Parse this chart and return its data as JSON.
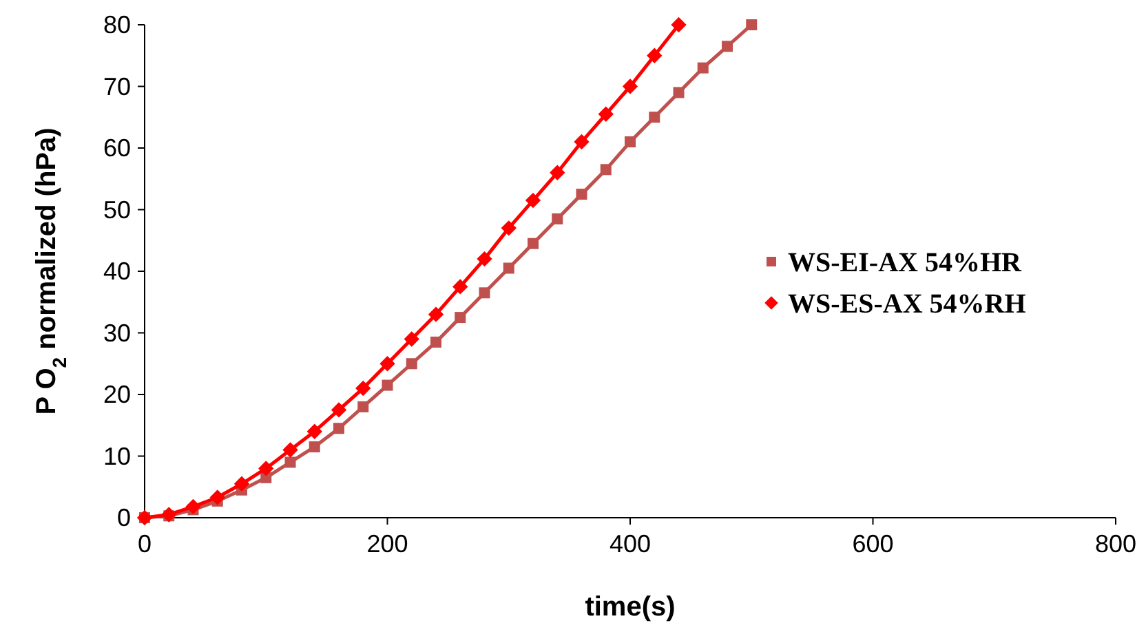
{
  "chart_data": {
    "type": "line",
    "xlabel": "time(s)",
    "ylabel": "P O$_{2}$ normalized (hPa)",
    "xlim": [
      0,
      800
    ],
    "xticks": [
      0,
      200,
      400,
      600,
      800
    ],
    "ylim": [
      0,
      80
    ],
    "yticks": [
      0,
      10,
      20,
      30,
      40,
      50,
      60,
      70,
      80
    ],
    "grid": false,
    "legend": "right",
    "series": [
      {
        "name": "WS-EI-AX 54%HR",
        "color": "#c0504d",
        "marker": "square",
        "x": [
          0,
          20,
          40,
          60,
          80,
          100,
          120,
          140,
          160,
          180,
          200,
          220,
          240,
          260,
          280,
          300,
          320,
          340,
          360,
          380,
          400,
          420,
          440,
          460,
          480,
          500
        ],
        "values": [
          0,
          0.3,
          1.3,
          2.7,
          4.5,
          6.5,
          9,
          11.5,
          14.5,
          18,
          21.5,
          25,
          28.5,
          32.5,
          36.5,
          40.5,
          44.5,
          48.5,
          52.5,
          56.5,
          61,
          65,
          69,
          73,
          76.5,
          80
        ]
      },
      {
        "name": "WS-ES-AX 54%RH",
        "color": "#ff0000",
        "marker": "diamond",
        "x": [
          0,
          20,
          40,
          60,
          80,
          100,
          120,
          140,
          160,
          180,
          200,
          220,
          240,
          260,
          280,
          300,
          320,
          340,
          360,
          380,
          400,
          420,
          440
        ],
        "values": [
          0,
          0.5,
          1.8,
          3.3,
          5.5,
          8,
          11,
          14,
          17.5,
          21,
          25,
          29,
          33,
          37.5,
          42,
          47,
          51.5,
          56,
          61,
          65.5,
          70,
          75,
          80
        ]
      }
    ]
  }
}
